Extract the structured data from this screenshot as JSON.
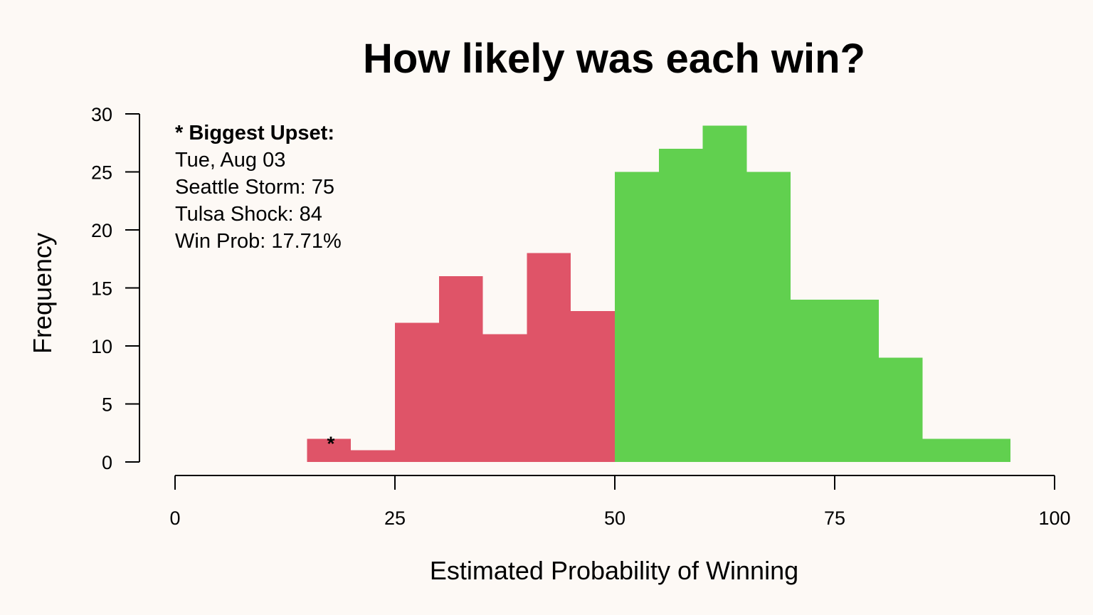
{
  "chart_data": {
    "type": "bar",
    "title": "How likely was each win?",
    "xlabel": "Estimated Probability of Winning",
    "ylabel": "Frequency",
    "xlim": [
      0,
      100
    ],
    "ylim": [
      0,
      30
    ],
    "x_ticks": [
      0,
      25,
      50,
      75,
      100
    ],
    "y_ticks": [
      0,
      5,
      10,
      15,
      20,
      25,
      30
    ],
    "bin_width": 5,
    "bins": [
      {
        "x0": 15,
        "x1": 20,
        "count": 2,
        "color": "#df5468"
      },
      {
        "x0": 20,
        "x1": 25,
        "count": 1,
        "color": "#df5468"
      },
      {
        "x0": 25,
        "x1": 30,
        "count": 12,
        "color": "#df5468"
      },
      {
        "x0": 30,
        "x1": 35,
        "count": 16,
        "color": "#df5468"
      },
      {
        "x0": 35,
        "x1": 40,
        "count": 11,
        "color": "#df5468"
      },
      {
        "x0": 40,
        "x1": 45,
        "count": 18,
        "color": "#df5468"
      },
      {
        "x0": 45,
        "x1": 50,
        "count": 13,
        "color": "#df5468"
      },
      {
        "x0": 50,
        "x1": 55,
        "count": 25,
        "color": "#61d04f"
      },
      {
        "x0": 55,
        "x1": 60,
        "count": 27,
        "color": "#61d04f"
      },
      {
        "x0": 60,
        "x1": 65,
        "count": 29,
        "color": "#61d04f"
      },
      {
        "x0": 65,
        "x1": 70,
        "count": 25,
        "color": "#61d04f"
      },
      {
        "x0": 70,
        "x1": 75,
        "count": 14,
        "color": "#61d04f"
      },
      {
        "x0": 75,
        "x1": 80,
        "count": 14,
        "color": "#61d04f"
      },
      {
        "x0": 80,
        "x1": 85,
        "count": 9,
        "color": "#61d04f"
      },
      {
        "x0": 85,
        "x1": 90,
        "count": 2,
        "color": "#61d04f"
      },
      {
        "x0": 90,
        "x1": 95,
        "count": 2,
        "color": "#61d04f"
      }
    ],
    "upset_marker": {
      "symbol": "*",
      "x": 17.71
    },
    "annotation": {
      "heading": "* Biggest Upset:",
      "lines": [
        "Tue, Aug 03",
        "Seattle Storm: 75",
        "Tulsa Shock: 84",
        "Win Prob: 17.71%"
      ]
    },
    "colors": {
      "loss_side": "#df5468",
      "win_side": "#61d04f",
      "background": "#fdf9f5"
    },
    "grid": false,
    "legend": "none"
  }
}
